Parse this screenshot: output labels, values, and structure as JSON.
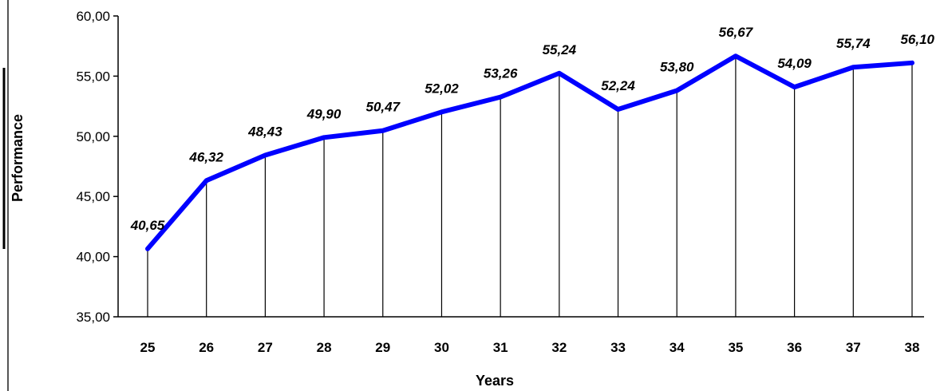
{
  "chart_data": {
    "type": "line",
    "title": "",
    "xlabel": "Years",
    "ylabel": "Performance",
    "categories": [
      "25",
      "26",
      "27",
      "28",
      "29",
      "30",
      "31",
      "32",
      "33",
      "34",
      "35",
      "36",
      "37",
      "38"
    ],
    "values": [
      40.65,
      46.32,
      48.43,
      49.9,
      50.47,
      52.02,
      53.26,
      55.24,
      52.24,
      53.8,
      56.67,
      54.09,
      55.74,
      56.1
    ],
    "data_labels": [
      "40,65",
      "46,32",
      "48,43",
      "49,90",
      "50,47",
      "52,02",
      "53,26",
      "55,24",
      "52,24",
      "53,80",
      "56,67",
      "54,09",
      "55,74",
      "56,10"
    ],
    "y_ticks": [
      "35,00",
      "40,00",
      "45,00",
      "50,00",
      "55,00",
      "60,00"
    ],
    "ylim": [
      35,
      60
    ],
    "grid": false,
    "drop_lines": true,
    "line_color": "#0000ff"
  }
}
